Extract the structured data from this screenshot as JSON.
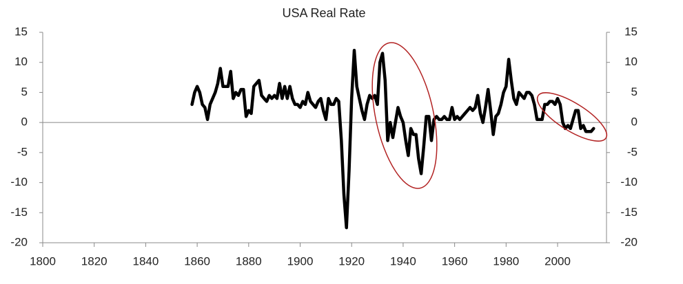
{
  "chart_data": {
    "type": "line",
    "title": "USA Real Rate",
    "x": [
      1858,
      1859,
      1860,
      1861,
      1862,
      1863,
      1864,
      1865,
      1866,
      1867,
      1868,
      1869,
      1870,
      1871,
      1872,
      1873,
      1874,
      1875,
      1876,
      1877,
      1878,
      1879,
      1880,
      1881,
      1882,
      1883,
      1884,
      1885,
      1886,
      1887,
      1888,
      1889,
      1890,
      1891,
      1892,
      1893,
      1894,
      1895,
      1896,
      1897,
      1898,
      1899,
      1900,
      1901,
      1902,
      1903,
      1904,
      1905,
      1906,
      1907,
      1908,
      1909,
      1910,
      1911,
      1912,
      1913,
      1914,
      1915,
      1916,
      1917,
      1918,
      1919,
      1920,
      1921,
      1922,
      1923,
      1924,
      1925,
      1926,
      1927,
      1928,
      1929,
      1930,
      1931,
      1932,
      1933,
      1934,
      1935,
      1936,
      1937,
      1938,
      1939,
      1940,
      1941,
      1942,
      1943,
      1944,
      1945,
      1946,
      1947,
      1948,
      1949,
      1950,
      1951,
      1952,
      1953,
      1954,
      1955,
      1956,
      1957,
      1958,
      1959,
      1960,
      1961,
      1962,
      1963,
      1964,
      1965,
      1966,
      1967,
      1968,
      1969,
      1970,
      1971,
      1972,
      1973,
      1974,
      1975,
      1976,
      1977,
      1978,
      1979,
      1980,
      1981,
      1982,
      1983,
      1984,
      1985,
      1986,
      1987,
      1988,
      1989,
      1990,
      1991,
      1992,
      1993,
      1994,
      1995,
      1996,
      1997,
      1998,
      1999,
      2000,
      2001,
      2002,
      2003,
      2004,
      2005,
      2006,
      2007,
      2008,
      2009,
      2010,
      2011,
      2012,
      2013,
      2014
    ],
    "series": [
      {
        "color": "#000000",
        "values": [
          3,
          5,
          6,
          5,
          3,
          2.5,
          0.5,
          3,
          4,
          5,
          6.5,
          9,
          6,
          6,
          6,
          8.5,
          4,
          5,
          4.5,
          5.5,
          5.5,
          1,
          2,
          1.5,
          6,
          6.5,
          7,
          4.5,
          4,
          3.5,
          4.5,
          4,
          4.5,
          4,
          6.5,
          4,
          6,
          4,
          6,
          4,
          3,
          3,
          2.5,
          3.5,
          3,
          5,
          3.5,
          3,
          2.5,
          3.5,
          4,
          2,
          0.5,
          4,
          3,
          3,
          4,
          3.5,
          -3,
          -12,
          -17.5,
          -8,
          4,
          12,
          6,
          4,
          2,
          0.5,
          3,
          4.5,
          4,
          4.5,
          3,
          10,
          11.5,
          7,
          -3,
          0,
          -2.5,
          0,
          2.5,
          1,
          0,
          -3,
          -5.5,
          -1,
          -2,
          -2,
          -6,
          -8.5,
          -4,
          1,
          1,
          -3,
          0.5,
          1,
          0.5,
          0.5,
          1,
          0.5,
          0.5,
          2.5,
          0.5,
          1,
          0.5,
          1,
          1.5,
          2,
          2.5,
          2,
          2.5,
          4.5,
          1.5,
          0,
          2.5,
          5.5,
          2,
          -2,
          1,
          1.5,
          3,
          5,
          6,
          10.5,
          7,
          4,
          3,
          5,
          4.5,
          4,
          5,
          5,
          4.5,
          3,
          0.5,
          0.5,
          0.5,
          3,
          3,
          3.5,
          3.5,
          3,
          4,
          3,
          0,
          -1,
          -0.5,
          -1,
          0.5,
          2,
          2,
          -1,
          -0.5,
          -1.5,
          -1.5,
          -1.5,
          -1
        ]
      }
    ],
    "xlim": [
      1800,
      2019
    ],
    "xticks": [
      1800,
      1820,
      1840,
      1860,
      1880,
      1900,
      1920,
      1940,
      1960,
      1980,
      2000
    ],
    "ylim": [
      -20,
      15
    ],
    "yticks": [
      -20,
      -15,
      -10,
      -5,
      0,
      5,
      10,
      15
    ],
    "y2lim": [
      -20,
      15
    ],
    "y2ticks": [
      -20,
      -15,
      -10,
      -5,
      0,
      5,
      10,
      15
    ]
  }
}
